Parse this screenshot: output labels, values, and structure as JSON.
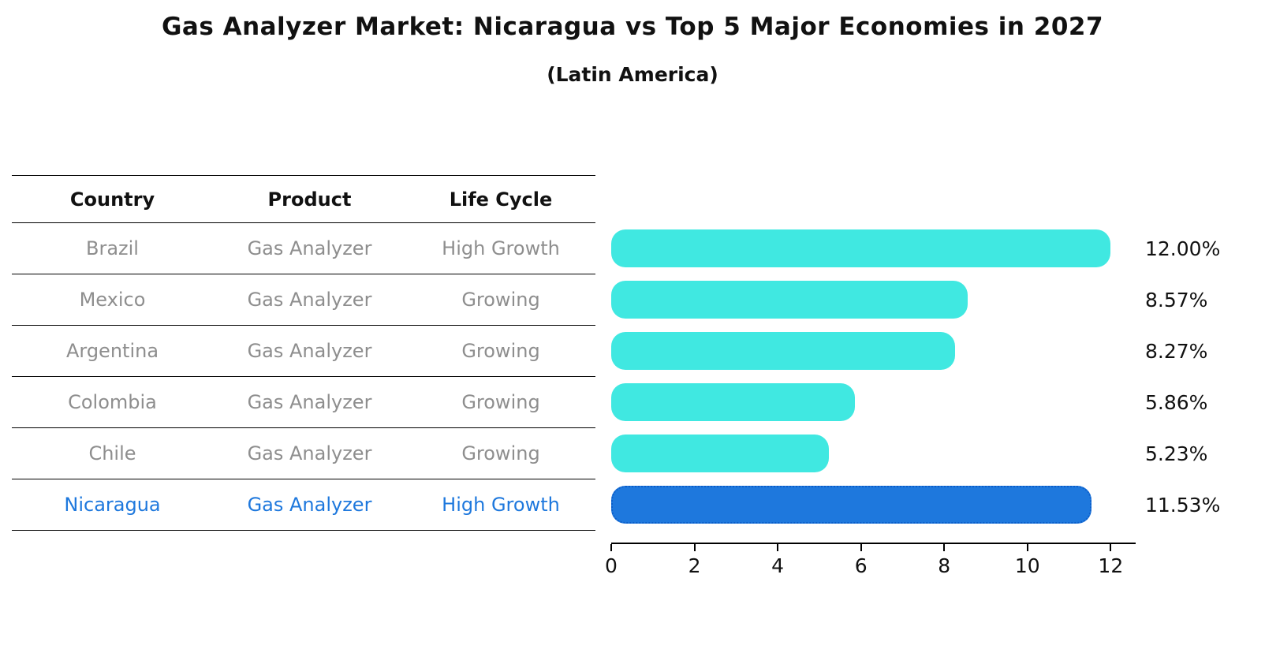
{
  "title": "Gas Analyzer Market: Nicaragua vs Top 5 Major Economies in 2027",
  "subtitle": "(Latin America)",
  "table": {
    "headers": [
      "Country",
      "Product",
      "Life Cycle"
    ],
    "rows": [
      {
        "country": "Brazil",
        "product": "Gas Analyzer",
        "life_cycle": "High Growth",
        "highlight": false
      },
      {
        "country": "Mexico",
        "product": "Gas Analyzer",
        "life_cycle": "Growing",
        "highlight": false
      },
      {
        "country": "Argentina",
        "product": "Gas Analyzer",
        "life_cycle": "Growing",
        "highlight": false
      },
      {
        "country": "Colombia",
        "product": "Gas Analyzer",
        "life_cycle": "Growing",
        "highlight": false
      },
      {
        "country": "Chile",
        "product": "Gas Analyzer",
        "life_cycle": "Growing",
        "highlight": false
      },
      {
        "country": "Nicaragua",
        "product": "Gas Analyzer",
        "life_cycle": "High Growth",
        "highlight": true
      }
    ]
  },
  "chart_data": {
    "type": "bar",
    "orientation": "horizontal",
    "title": "Gas Analyzer Market: Nicaragua vs Top 5 Major Economies in 2027 (Latin America)",
    "categories": [
      "Brazil",
      "Mexico",
      "Argentina",
      "Colombia",
      "Chile",
      "Nicaragua"
    ],
    "values": [
      12.0,
      8.57,
      8.27,
      5.86,
      5.23,
      11.53
    ],
    "value_labels": [
      "12.00%",
      "8.57%",
      "8.27%",
      "5.86%",
      "5.23%",
      "11.53%"
    ],
    "xlabel": "",
    "ylabel": "",
    "xlim": [
      0,
      12.6
    ],
    "xticks": [
      0,
      2,
      4,
      6,
      8,
      10,
      12
    ],
    "grid": false,
    "legend": null,
    "highlight_index": 5
  },
  "colors": {
    "bar_default": "#40E8E1",
    "bar_highlight": "#1E78DD",
    "highlight_text": "#1E78DD",
    "table_text": "#8E8E8E",
    "header_text": "#111111"
  }
}
